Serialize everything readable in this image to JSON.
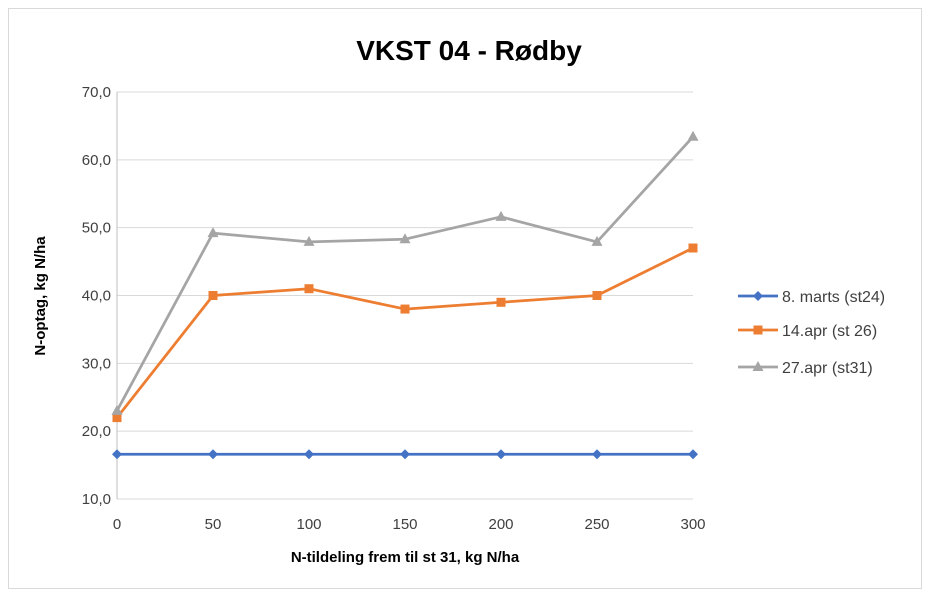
{
  "chart_data": {
    "type": "line",
    "title": "VKST 04 - Rødby",
    "xlabel": "N-tildeling frem til st 31, kg N/ha",
    "ylabel": "N-optag, kg N/ha",
    "x": [
      0,
      50,
      100,
      150,
      200,
      250,
      300
    ],
    "x_tick_labels": [
      "0",
      "50",
      "100",
      "150",
      "200",
      "250",
      "300"
    ],
    "ylim": [
      10,
      70
    ],
    "y_ticks": [
      10,
      20,
      30,
      40,
      50,
      60,
      70
    ],
    "y_tick_labels": [
      "10,0",
      "20,0",
      "30,0",
      "40,0",
      "50,0",
      "60,0",
      "70,0"
    ],
    "grid": true,
    "legend_position": "right",
    "series": [
      {
        "name": "8. marts (st24)",
        "color": "#4472c4",
        "marker": "diamond",
        "values": [
          16.6,
          16.6,
          16.6,
          16.6,
          16.6,
          16.6,
          16.6
        ]
      },
      {
        "name": "14.apr (st 26)",
        "color": "#ed7d31",
        "marker": "square",
        "values": [
          22.0,
          40.0,
          41.0,
          38.0,
          39.0,
          40.0,
          47.0
        ]
      },
      {
        "name": "27.apr (st31)",
        "color": "#a5a5a5",
        "marker": "triangle",
        "values": [
          23.0,
          49.2,
          47.9,
          48.3,
          51.6,
          47.9,
          63.4
        ]
      }
    ]
  }
}
